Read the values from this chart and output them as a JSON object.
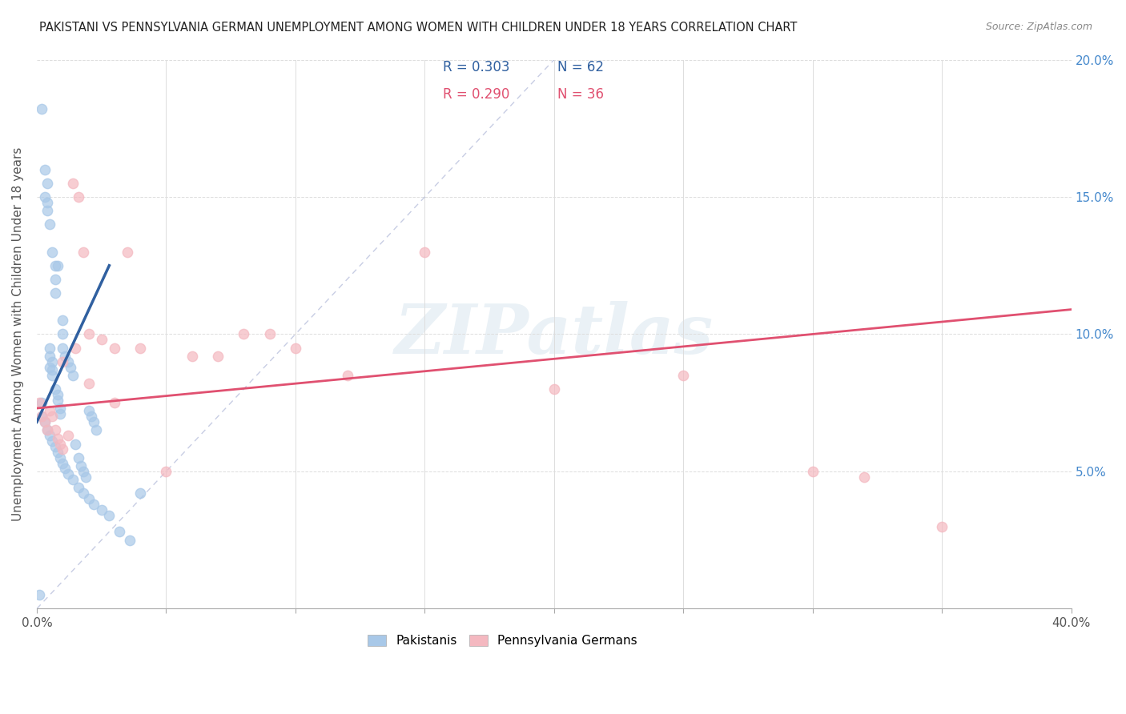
{
  "title": "PAKISTANI VS PENNSYLVANIA GERMAN UNEMPLOYMENT AMONG WOMEN WITH CHILDREN UNDER 18 YEARS CORRELATION CHART",
  "source": "Source: ZipAtlas.com",
  "ylabel": "Unemployment Among Women with Children Under 18 years",
  "xlim": [
    0,
    0.4
  ],
  "ylim": [
    0,
    0.2
  ],
  "color_pakistani": "#a8c8e8",
  "color_pennsylvania": "#f4b8c0",
  "color_trend_pakistani": "#3060a0",
  "color_trend_pennsylvania": "#e05070",
  "color_diagonal": "#b0b8d8",
  "watermark": "ZIPatlas",
  "legend_R1": "R = 0.303",
  "legend_N1": "N = 62",
  "legend_R2": "R = 0.290",
  "legend_N2": "N = 36",
  "trend_pak_x0": 0.0,
  "trend_pak_y0": 0.068,
  "trend_pak_x1": 0.028,
  "trend_pak_y1": 0.125,
  "trend_pa_x0": 0.0,
  "trend_pa_y0": 0.073,
  "trend_pa_x1": 0.4,
  "trend_pa_y1": 0.109,
  "pak_x": [
    0.002,
    0.002,
    0.003,
    0.003,
    0.004,
    0.004,
    0.004,
    0.005,
    0.005,
    0.005,
    0.005,
    0.006,
    0.006,
    0.006,
    0.006,
    0.007,
    0.007,
    0.007,
    0.007,
    0.008,
    0.008,
    0.008,
    0.009,
    0.009,
    0.01,
    0.01,
    0.01,
    0.011,
    0.012,
    0.013,
    0.014,
    0.015,
    0.016,
    0.017,
    0.018,
    0.019,
    0.02,
    0.021,
    0.022,
    0.023,
    0.002,
    0.003,
    0.004,
    0.005,
    0.006,
    0.007,
    0.008,
    0.009,
    0.01,
    0.011,
    0.012,
    0.014,
    0.016,
    0.018,
    0.02,
    0.022,
    0.025,
    0.028,
    0.032,
    0.036,
    0.001,
    0.04
  ],
  "pak_y": [
    0.182,
    0.075,
    0.16,
    0.15,
    0.155,
    0.148,
    0.145,
    0.14,
    0.095,
    0.092,
    0.088,
    0.09,
    0.087,
    0.085,
    0.13,
    0.125,
    0.12,
    0.115,
    0.08,
    0.078,
    0.076,
    0.125,
    0.073,
    0.071,
    0.105,
    0.1,
    0.095,
    0.092,
    0.09,
    0.088,
    0.085,
    0.06,
    0.055,
    0.052,
    0.05,
    0.048,
    0.072,
    0.07,
    0.068,
    0.065,
    0.07,
    0.068,
    0.065,
    0.063,
    0.061,
    0.059,
    0.057,
    0.055,
    0.053,
    0.051,
    0.049,
    0.047,
    0.044,
    0.042,
    0.04,
    0.038,
    0.036,
    0.034,
    0.028,
    0.025,
    0.005,
    0.042
  ],
  "pa_x": [
    0.001,
    0.002,
    0.003,
    0.004,
    0.005,
    0.006,
    0.007,
    0.008,
    0.009,
    0.01,
    0.012,
    0.014,
    0.016,
    0.018,
    0.02,
    0.025,
    0.03,
    0.035,
    0.04,
    0.05,
    0.06,
    0.07,
    0.08,
    0.09,
    0.1,
    0.12,
    0.15,
    0.2,
    0.25,
    0.3,
    0.01,
    0.015,
    0.02,
    0.03,
    0.35,
    0.32
  ],
  "pa_y": [
    0.075,
    0.07,
    0.068,
    0.065,
    0.072,
    0.07,
    0.065,
    0.062,
    0.06,
    0.058,
    0.063,
    0.155,
    0.15,
    0.13,
    0.1,
    0.098,
    0.095,
    0.13,
    0.095,
    0.05,
    0.092,
    0.092,
    0.1,
    0.1,
    0.095,
    0.085,
    0.13,
    0.08,
    0.085,
    0.05,
    0.09,
    0.095,
    0.082,
    0.075,
    0.03,
    0.048
  ]
}
